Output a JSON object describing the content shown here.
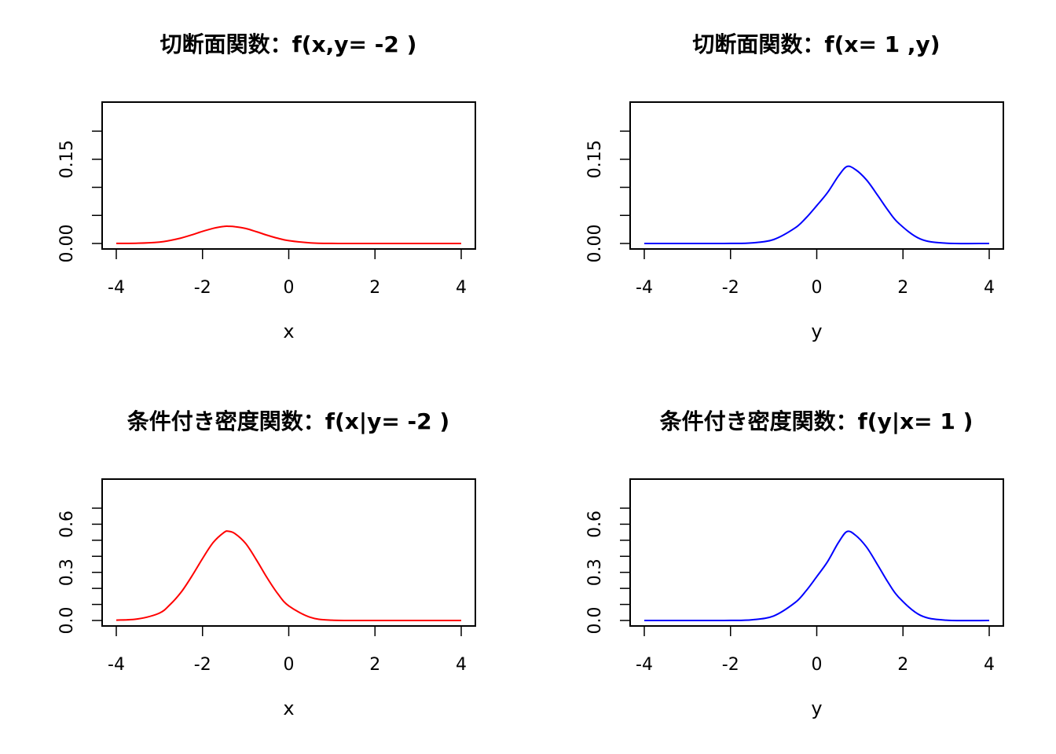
{
  "chart_data": [
    {
      "type": "line",
      "title": "切断面関数：f(x,y= -2 )",
      "xlabel": "x",
      "ylabel": "",
      "xlim": [
        -4,
        4
      ],
      "ylim": [
        0,
        0.2
      ],
      "xticks": [
        -4,
        -2,
        0,
        2,
        4
      ],
      "xtick_labels": [
        "-4",
        "-2",
        "0",
        "2",
        "4"
      ],
      "yticks": [
        0,
        0.05,
        0.1,
        0.15,
        0.2
      ],
      "ytick_labels": [
        "0.00",
        "",
        "",
        "0.15",
        ""
      ],
      "grid": false,
      "series": [
        {
          "color": "#ff0000",
          "x": [
            -4,
            -3.5,
            -3,
            -2.75,
            -2.5,
            -2.25,
            -2,
            -1.75,
            -1.5,
            -1.4,
            -1.25,
            -1,
            -0.75,
            -0.5,
            -0.25,
            0,
            0.5,
            1,
            2,
            3,
            4
          ],
          "y": [
            0.0001,
            0.0005,
            0.0025,
            0.0055,
            0.0097,
            0.0153,
            0.0215,
            0.027,
            0.0304,
            0.0306,
            0.03,
            0.0267,
            0.021,
            0.0147,
            0.0092,
            0.005,
            0.0011,
            0.0001,
            0,
            0,
            0
          ]
        }
      ]
    },
    {
      "type": "line",
      "title": "切断面関数：f(x= 1 ,y)",
      "xlabel": "y",
      "ylabel": "",
      "xlim": [
        -4,
        4
      ],
      "ylim": [
        0,
        0.2
      ],
      "xticks": [
        -4,
        -2,
        0,
        2,
        4
      ],
      "xtick_labels": [
        "-4",
        "-2",
        "0",
        "2",
        "4"
      ],
      "yticks": [
        0,
        0.05,
        0.1,
        0.15,
        0.2
      ],
      "ytick_labels": [
        "0.00",
        "",
        "",
        "0.15",
        ""
      ],
      "grid": false,
      "series": [
        {
          "color": "#0000ff",
          "x": [
            -4,
            -3,
            -2,
            -1.5,
            -1,
            -0.5,
            -0.25,
            0,
            0.25,
            0.5,
            0.7,
            0.9,
            1.15,
            1.4,
            1.65,
            1.9,
            2.4,
            3,
            4
          ],
          "y": [
            0,
            0,
            0.0001,
            0.0011,
            0.007,
            0.0278,
            0.0455,
            0.0674,
            0.0906,
            0.1198,
            0.137,
            0.1314,
            0.1136,
            0.0872,
            0.0595,
            0.036,
            0.0081,
            0.0006,
            0
          ]
        }
      ]
    },
    {
      "type": "line",
      "title": "条件付き密度関数：f(x|y= -2 )",
      "xlabel": "x",
      "ylabel": "",
      "xlim": [
        -4,
        4
      ],
      "ylim": [
        0,
        0.7
      ],
      "xticks": [
        -4,
        -2,
        0,
        2,
        4
      ],
      "xtick_labels": [
        "-4",
        "-2",
        "0",
        "2",
        "4"
      ],
      "yticks": [
        0,
        0.1,
        0.2,
        0.3,
        0.4,
        0.5,
        0.6,
        0.7
      ],
      "ytick_labels": [
        "0.0",
        "",
        "",
        "0.3",
        "",
        "",
        "0.6",
        ""
      ],
      "grid": false,
      "series": [
        {
          "color": "#ff0000",
          "x": [
            -4,
            -3.5,
            -3,
            -2.75,
            -2.5,
            -2.25,
            -2,
            -1.75,
            -1.5,
            -1.4,
            -1.25,
            -1,
            -0.75,
            -0.5,
            -0.25,
            0,
            0.5,
            1,
            2,
            3,
            4
          ],
          "y": [
            0.002,
            0.01,
            0.046,
            0.1,
            0.175,
            0.275,
            0.386,
            0.487,
            0.549,
            0.556,
            0.542,
            0.48,
            0.378,
            0.265,
            0.165,
            0.091,
            0.02,
            0.002,
            0,
            0,
            0
          ]
        }
      ]
    },
    {
      "type": "line",
      "title": "条件付き密度関数：f(y|x= 1 )",
      "xlabel": "y",
      "ylabel": "",
      "xlim": [
        -4,
        4
      ],
      "ylim": [
        0,
        0.7
      ],
      "xticks": [
        -4,
        -2,
        0,
        2,
        4
      ],
      "xtick_labels": [
        "-4",
        "-2",
        "0",
        "2",
        "4"
      ],
      "yticks": [
        0,
        0.1,
        0.2,
        0.3,
        0.4,
        0.5,
        0.6,
        0.7
      ],
      "ytick_labels": [
        "0.0",
        "",
        "",
        "0.3",
        "",
        "",
        "0.6",
        ""
      ],
      "grid": false,
      "series": [
        {
          "color": "#0000ff",
          "x": [
            -4,
            -3,
            -2,
            -1.5,
            -1,
            -0.5,
            -0.25,
            0,
            0.25,
            0.5,
            0.7,
            0.9,
            1.15,
            1.4,
            1.65,
            1.9,
            2.4,
            3,
            4
          ],
          "y": [
            0,
            0,
            0.0004,
            0.0045,
            0.028,
            0.112,
            0.184,
            0.273,
            0.366,
            0.484,
            0.554,
            0.531,
            0.459,
            0.352,
            0.24,
            0.145,
            0.033,
            0.002,
            0
          ]
        }
      ]
    }
  ]
}
